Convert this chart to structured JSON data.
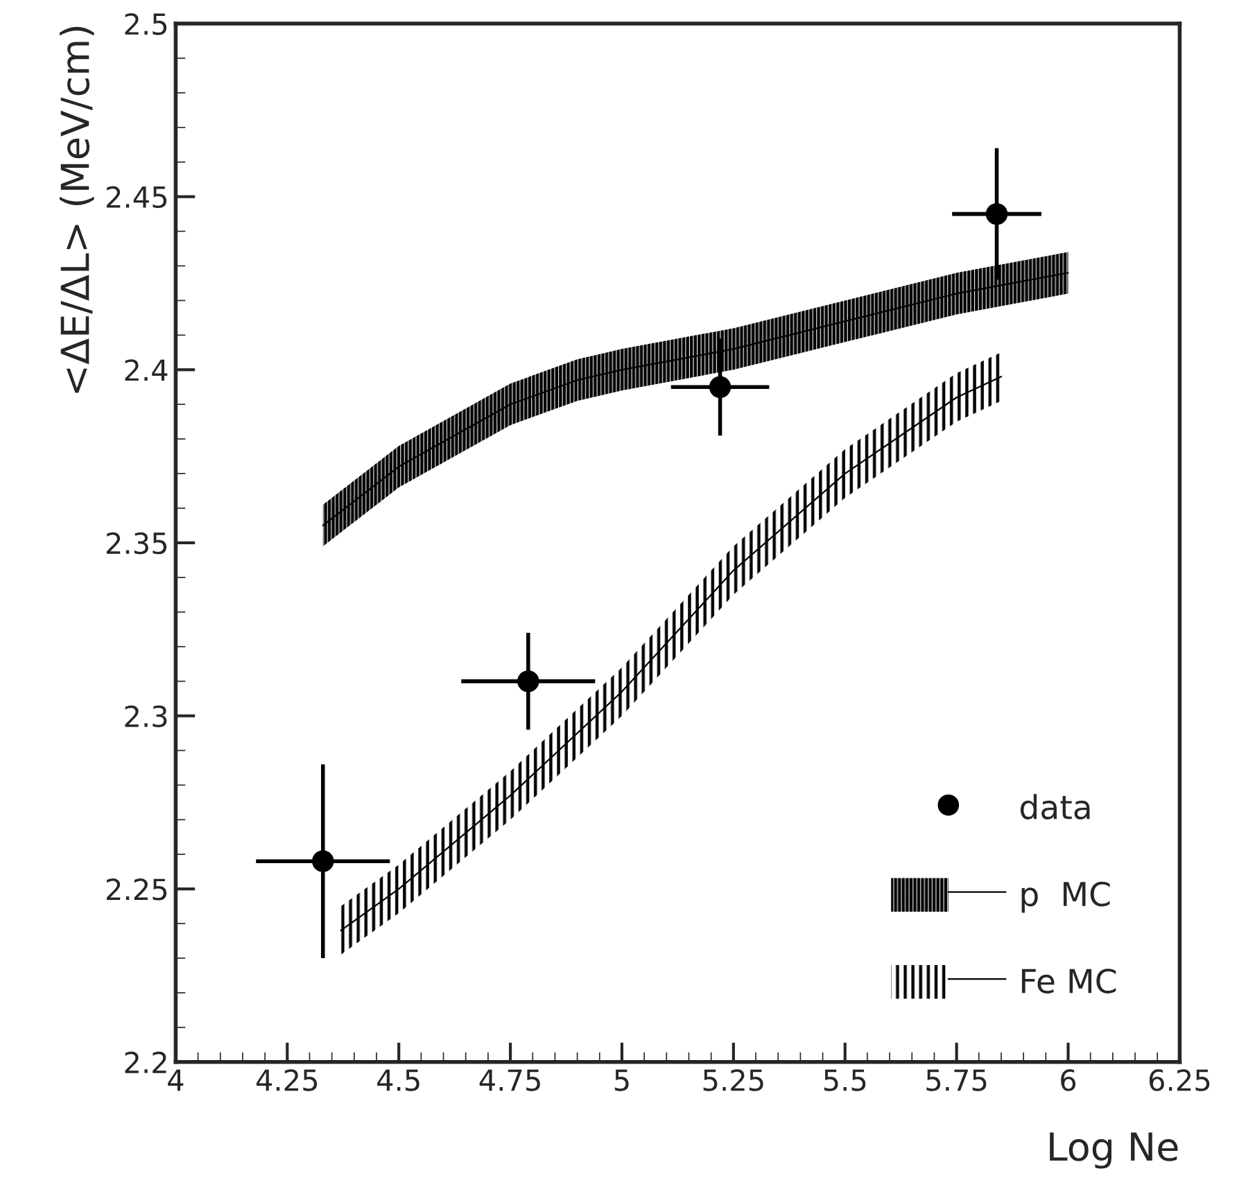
{
  "chart_data": {
    "type": "scatter",
    "xlabel": "Log Ne",
    "ylabel": "<ΔE/ΔL> (MeV/cm)",
    "xlim": [
      4,
      6.25
    ],
    "xticks": [
      4,
      4.25,
      4.5,
      4.75,
      5,
      5.25,
      5.5,
      5.75,
      6,
      6.25
    ],
    "ylim": [
      2.2,
      2.5
    ],
    "yticks": [
      2.2,
      2.25,
      2.3,
      2.35,
      2.4,
      2.45,
      2.5
    ],
    "grid": false,
    "legend": "bottom right",
    "series": [
      {
        "name": "data",
        "color": "#000000",
        "marker": "circle",
        "x": [
          4.33,
          4.79,
          5.22,
          5.84
        ],
        "values": [
          2.258,
          2.31,
          2.395,
          2.445
        ],
        "errors": [
          0.028,
          0.014,
          0.014,
          0.019
        ],
        "xerrors": [
          0.15,
          0.15,
          0.11,
          0.1
        ]
      },
      {
        "name": "p  MC",
        "type": "line",
        "color": "#000000",
        "x": [
          4.33,
          4.5,
          4.75,
          4.9,
          5.0,
          5.25,
          5.5,
          5.75,
          6.0
        ],
        "values": [
          2.355,
          2.372,
          2.39,
          2.397,
          2.4,
          2.406,
          2.414,
          2.422,
          2.428
        ],
        "lower": [
          2.349,
          2.366,
          2.384,
          2.391,
          2.394,
          2.4,
          2.408,
          2.416,
          2.422
        ],
        "upper": [
          2.361,
          2.378,
          2.396,
          2.403,
          2.406,
          2.412,
          2.42,
          2.428,
          2.434
        ]
      },
      {
        "name": "Fe MC",
        "type": "line",
        "color": "#000000",
        "x": [
          4.37,
          4.5,
          4.75,
          5.0,
          5.25,
          5.5,
          5.75,
          5.85
        ],
        "values": [
          2.238,
          2.25,
          2.277,
          2.307,
          2.342,
          2.37,
          2.392,
          2.398
        ],
        "lower": [
          2.231,
          2.243,
          2.27,
          2.3,
          2.335,
          2.363,
          2.385,
          2.391
        ],
        "upper": [
          2.245,
          2.257,
          2.284,
          2.314,
          2.349,
          2.377,
          2.399,
          2.405
        ]
      }
    ]
  }
}
